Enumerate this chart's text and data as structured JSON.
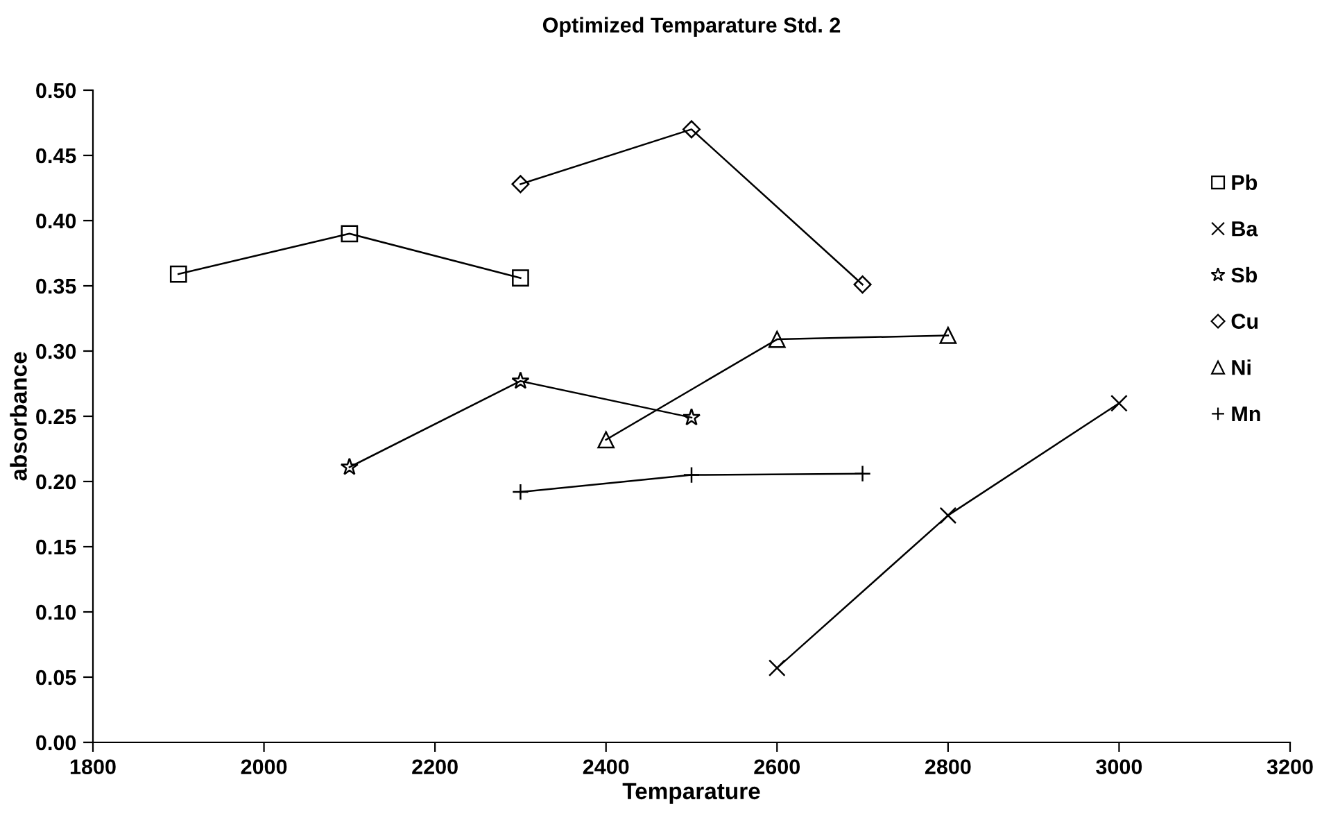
{
  "chart_data": {
    "type": "line",
    "title": "Optimized Temparature Std. 2",
    "xlabel": "Temparature",
    "ylabel": "absorbance",
    "xlim": [
      1800,
      3200
    ],
    "xticks": [
      1800,
      2000,
      2200,
      2400,
      2600,
      2800,
      3000,
      3200
    ],
    "ylim": [
      0,
      0.5
    ],
    "yticks": [
      {
        "value": 0,
        "label": "0.00"
      },
      {
        "value": 0.05,
        "label": "0.05"
      },
      {
        "value": 0.1,
        "label": "0.10"
      },
      {
        "value": 0.15,
        "label": "0.15"
      },
      {
        "value": 0.2,
        "label": "0.20"
      },
      {
        "value": 0.25,
        "label": "0.25"
      },
      {
        "value": 0.3,
        "label": "0.30"
      },
      {
        "value": 0.35,
        "label": "0.35"
      },
      {
        "value": 0.4,
        "label": "0.40"
      },
      {
        "value": 0.45,
        "label": "0.45"
      },
      {
        "value": 0.5,
        "label": "0.50"
      }
    ],
    "grid": false,
    "legend": "right",
    "line_style": "solid",
    "series": [
      {
        "name": "Pb",
        "color": "#000000",
        "marker": "square",
        "x": [
          1900,
          2100,
          2300
        ],
        "values": [
          0.359,
          0.39,
          0.356
        ]
      },
      {
        "name": "Ba",
        "color": "#000000",
        "marker": "cross",
        "x": [
          2600,
          2800,
          3000
        ],
        "values": [
          0.057,
          0.174,
          0.26
        ]
      },
      {
        "name": "Sb",
        "color": "#000000",
        "marker": "star",
        "x": [
          2100,
          2300,
          2500
        ],
        "values": [
          0.211,
          0.277,
          0.249
        ]
      },
      {
        "name": "Cu",
        "color": "#000000",
        "marker": "diamond",
        "x": [
          2300,
          2500,
          2700
        ],
        "values": [
          0.428,
          0.47,
          0.351
        ]
      },
      {
        "name": "Ni",
        "color": "#000000",
        "marker": "triangle",
        "x": [
          2400,
          2600,
          2800
        ],
        "values": [
          0.232,
          0.309,
          0.312
        ]
      },
      {
        "name": "Mn",
        "color": "#000000",
        "marker": "plus",
        "x": [
          2300,
          2500,
          2700
        ],
        "values": [
          0.192,
          0.205,
          0.206
        ]
      }
    ]
  }
}
